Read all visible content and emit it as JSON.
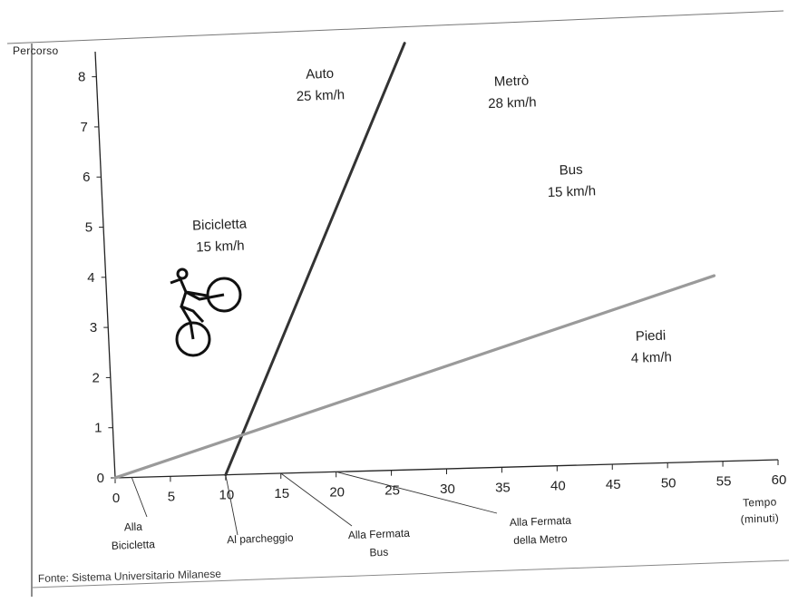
{
  "chart_data": {
    "type": "line",
    "xlabel": [
      "Tempo",
      "(minuti)"
    ],
    "ylabel": "Percorso",
    "xlim": [
      0,
      60
    ],
    "ylim": [
      0,
      8.5
    ],
    "x_ticks": [
      "0",
      "5",
      "10",
      "15",
      "20",
      "25",
      "30",
      "35",
      "40",
      "45",
      "50",
      "55",
      "60"
    ],
    "y_ticks": [
      "0",
      "1",
      "2",
      "3",
      "4",
      "5",
      "6",
      "7",
      "8"
    ],
    "series": [
      {
        "points": [
          [
            10,
            0
          ],
          [
            28,
            8.5
          ]
        ],
        "color": "#333333"
      },
      {
        "points": [
          [
            0,
            0
          ],
          [
            55,
            3.7
          ]
        ],
        "color": "#9a9a9a"
      }
    ],
    "annotations": [
      {
        "lines": [
          "Auto",
          "25 km/h"
        ],
        "x": 20.2,
        "y": 7.85
      },
      {
        "lines": [
          "Metrò",
          "28 km/h"
        ],
        "x": 37.5,
        "y": 7.6
      },
      {
        "lines": [
          "Bus",
          "15 km/h"
        ],
        "x": 42.5,
        "y": 5.8
      },
      {
        "lines": [
          "Bicicletta",
          "15 km/h"
        ],
        "x": 10.5,
        "y": 4.9
      },
      {
        "lines": [
          "Piedi",
          "4 km/h"
        ],
        "x": 49,
        "y": 2.45
      }
    ],
    "callouts": [
      {
        "lines": [
          "Alla",
          "Bicicletta"
        ],
        "x": 1.5
      },
      {
        "lines": [
          "Al parcheggio"
        ],
        "x": 10
      },
      {
        "lines": [
          "Alla Fermata",
          "Bus"
        ],
        "x": 15
      },
      {
        "lines": [
          "Alla Fermata",
          "della Metro"
        ],
        "x": 20
      }
    ],
    "icon": "cyclist-icon",
    "source": "Fonte: Sistema Universitario Milanese"
  }
}
